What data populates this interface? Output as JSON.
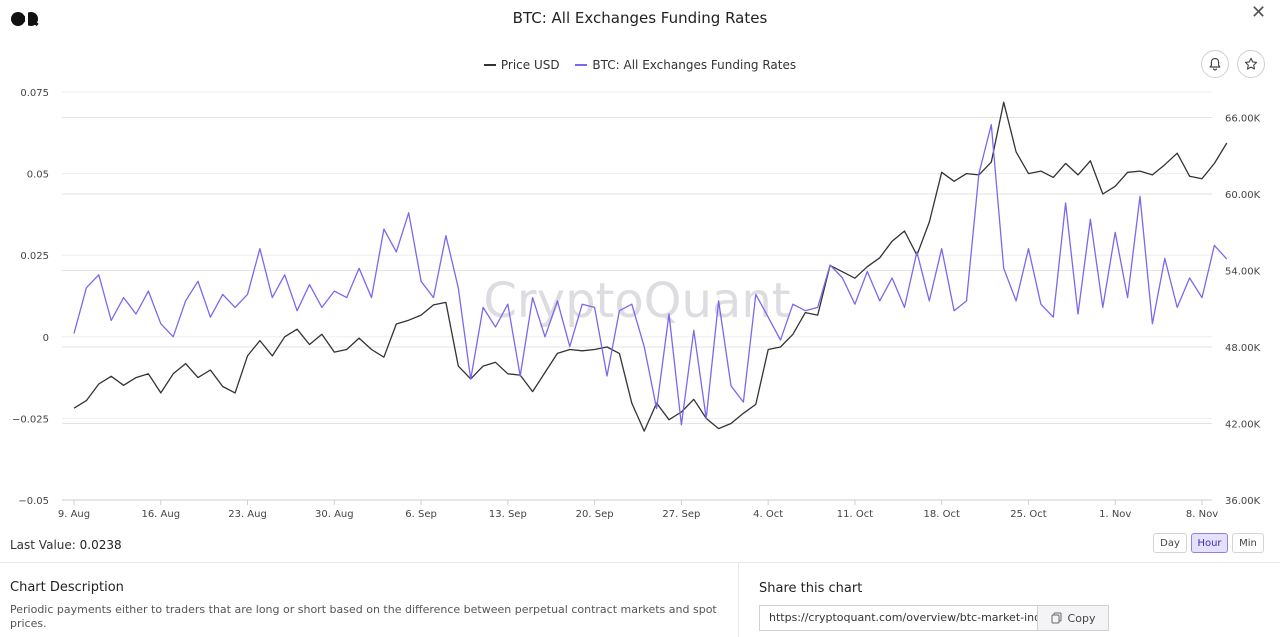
{
  "header": {
    "title": "BTC: All Exchanges Funding Rates",
    "close_icon": "close-icon",
    "logo_icon": "cryptoquant-logo-icon"
  },
  "legend": {
    "items": [
      {
        "label": "Price USD",
        "color": "#333333"
      },
      {
        "label": "BTC: All Exchanges Funding Rates",
        "color": "#7b68ee"
      }
    ]
  },
  "toolbar": {
    "bell_icon": "bell-icon",
    "star_icon": "star-icon"
  },
  "watermark": "CryptoQuant",
  "chart_data": {
    "type": "line",
    "x_tick_labels": [
      "9. Aug",
      "16. Aug",
      "23. Aug",
      "30. Aug",
      "6. Sep",
      "13. Sep",
      "20. Sep",
      "27. Sep",
      "4. Oct",
      "11. Oct",
      "18. Oct",
      "25. Oct",
      "1. Nov",
      "8. Nov"
    ],
    "x_range": [
      "2023-08-09",
      "2023-11-08"
    ],
    "y_left": {
      "ticks": [
        "0.075",
        "0.05",
        "0.025",
        "0",
        "−0.025",
        "−0.05"
      ],
      "range": [
        -0.05,
        0.075
      ]
    },
    "y_right": {
      "ticks": [
        "66.00K",
        "60.00K",
        "54.00K",
        "48.00K",
        "42.00K",
        "36.00K"
      ],
      "range": [
        36000,
        68000
      ]
    },
    "grid": true,
    "legend_position": "top-center",
    "series": [
      {
        "name": "Price USD",
        "axis": "right",
        "color": "#333333",
        "points": [
          [
            "2023-08-09",
            43200
          ],
          [
            "2023-08-10",
            43800
          ],
          [
            "2023-08-11",
            45100
          ],
          [
            "2023-08-12",
            45700
          ],
          [
            "2023-08-13",
            45000
          ],
          [
            "2023-08-14",
            45600
          ],
          [
            "2023-08-15",
            45900
          ],
          [
            "2023-08-16",
            44400
          ],
          [
            "2023-08-17",
            45900
          ],
          [
            "2023-08-18",
            46700
          ],
          [
            "2023-08-19",
            45600
          ],
          [
            "2023-08-20",
            46200
          ],
          [
            "2023-08-21",
            44900
          ],
          [
            "2023-08-22",
            44400
          ],
          [
            "2023-08-23",
            47300
          ],
          [
            "2023-08-24",
            48500
          ],
          [
            "2023-08-25",
            47300
          ],
          [
            "2023-08-26",
            48800
          ],
          [
            "2023-08-27",
            49400
          ],
          [
            "2023-08-28",
            48200
          ],
          [
            "2023-08-29",
            49000
          ],
          [
            "2023-08-30",
            47600
          ],
          [
            "2023-08-31",
            47800
          ],
          [
            "2023-09-01",
            48700
          ],
          [
            "2023-09-02",
            47800
          ],
          [
            "2023-09-03",
            47200
          ],
          [
            "2023-09-04",
            49800
          ],
          [
            "2023-09-05",
            50100
          ],
          [
            "2023-09-06",
            50500
          ],
          [
            "2023-09-07",
            51300
          ],
          [
            "2023-09-08",
            51500
          ],
          [
            "2023-09-09",
            46500
          ],
          [
            "2023-09-10",
            45500
          ],
          [
            "2023-09-11",
            46500
          ],
          [
            "2023-09-12",
            46800
          ],
          [
            "2023-09-13",
            45900
          ],
          [
            "2023-09-14",
            45800
          ],
          [
            "2023-09-15",
            44500
          ],
          [
            "2023-09-16",
            46000
          ],
          [
            "2023-09-17",
            47500
          ],
          [
            "2023-09-18",
            47800
          ],
          [
            "2023-09-19",
            47700
          ],
          [
            "2023-09-20",
            47800
          ],
          [
            "2023-09-21",
            48000
          ],
          [
            "2023-09-22",
            47500
          ],
          [
            "2023-09-23",
            43600
          ],
          [
            "2023-09-24",
            41400
          ],
          [
            "2023-09-25",
            43600
          ],
          [
            "2023-09-26",
            42300
          ],
          [
            "2023-09-27",
            42900
          ],
          [
            "2023-09-28",
            43900
          ],
          [
            "2023-09-29",
            42400
          ],
          [
            "2023-09-30",
            41600
          ],
          [
            "2023-10-01",
            42000
          ],
          [
            "2023-10-02",
            42800
          ],
          [
            "2023-10-03",
            43500
          ],
          [
            "2023-10-04",
            47800
          ],
          [
            "2023-10-05",
            48000
          ],
          [
            "2023-10-06",
            49000
          ],
          [
            "2023-10-07",
            50700
          ],
          [
            "2023-10-08",
            50500
          ],
          [
            "2023-10-09",
            54400
          ],
          [
            "2023-10-10",
            53900
          ],
          [
            "2023-10-11",
            53400
          ],
          [
            "2023-10-12",
            54300
          ],
          [
            "2023-10-13",
            55000
          ],
          [
            "2023-10-14",
            56300
          ],
          [
            "2023-10-15",
            57100
          ],
          [
            "2023-10-16",
            55200
          ],
          [
            "2023-10-17",
            57800
          ],
          [
            "2023-10-18",
            61700
          ],
          [
            "2023-10-19",
            61000
          ],
          [
            "2023-10-20",
            61600
          ],
          [
            "2023-10-21",
            61500
          ],
          [
            "2023-10-22",
            62500
          ],
          [
            "2023-10-23",
            67200
          ],
          [
            "2023-10-24",
            63300
          ],
          [
            "2023-10-25",
            61600
          ],
          [
            "2023-10-26",
            61800
          ],
          [
            "2023-10-27",
            61300
          ],
          [
            "2023-10-28",
            62400
          ],
          [
            "2023-10-29",
            61500
          ],
          [
            "2023-10-30",
            62600
          ],
          [
            "2023-10-31",
            60000
          ],
          [
            "2023-11-01",
            60600
          ],
          [
            "2023-11-02",
            61700
          ],
          [
            "2023-11-03",
            61800
          ],
          [
            "2023-11-04",
            61500
          ],
          [
            "2023-11-05",
            62300
          ],
          [
            "2023-11-06",
            63200
          ],
          [
            "2023-11-07",
            61400
          ],
          [
            "2023-11-08",
            61200
          ],
          [
            "2023-11-09",
            62400
          ],
          [
            "2023-11-10",
            64000
          ]
        ]
      },
      {
        "name": "BTC: All Exchanges Funding Rates",
        "axis": "left",
        "color": "#7b68ee",
        "last_value": "0.0238",
        "points": [
          [
            "2023-08-09",
            0.001
          ],
          [
            "2023-08-10",
            0.015
          ],
          [
            "2023-08-11",
            0.019
          ],
          [
            "2023-08-12",
            0.005
          ],
          [
            "2023-08-13",
            0.012
          ],
          [
            "2023-08-14",
            0.007
          ],
          [
            "2023-08-15",
            0.014
          ],
          [
            "2023-08-16",
            0.004
          ],
          [
            "2023-08-17",
            0.0
          ],
          [
            "2023-08-18",
            0.011
          ],
          [
            "2023-08-19",
            0.017
          ],
          [
            "2023-08-20",
            0.006
          ],
          [
            "2023-08-21",
            0.013
          ],
          [
            "2023-08-22",
            0.009
          ],
          [
            "2023-08-23",
            0.013
          ],
          [
            "2023-08-24",
            0.027
          ],
          [
            "2023-08-25",
            0.012
          ],
          [
            "2023-08-26",
            0.019
          ],
          [
            "2023-08-27",
            0.008
          ],
          [
            "2023-08-28",
            0.016
          ],
          [
            "2023-08-29",
            0.009
          ],
          [
            "2023-08-30",
            0.014
          ],
          [
            "2023-08-31",
            0.012
          ],
          [
            "2023-09-01",
            0.021
          ],
          [
            "2023-09-02",
            0.012
          ],
          [
            "2023-09-03",
            0.033
          ],
          [
            "2023-09-04",
            0.026
          ],
          [
            "2023-09-05",
            0.038
          ],
          [
            "2023-09-06",
            0.017
          ],
          [
            "2023-09-07",
            0.012
          ],
          [
            "2023-09-08",
            0.031
          ],
          [
            "2023-09-09",
            0.015
          ],
          [
            "2023-09-10",
            -0.013
          ],
          [
            "2023-09-11",
            0.009
          ],
          [
            "2023-09-12",
            0.003
          ],
          [
            "2023-09-13",
            0.01
          ],
          [
            "2023-09-14",
            -0.012
          ],
          [
            "2023-09-15",
            0.012
          ],
          [
            "2023-09-16",
            0.0
          ],
          [
            "2023-09-17",
            0.011
          ],
          [
            "2023-09-18",
            -0.003
          ],
          [
            "2023-09-19",
            0.01
          ],
          [
            "2023-09-20",
            0.009
          ],
          [
            "2023-09-21",
            -0.012
          ],
          [
            "2023-09-22",
            0.008
          ],
          [
            "2023-09-23",
            0.01
          ],
          [
            "2023-09-24",
            -0.003
          ],
          [
            "2023-09-25",
            -0.022
          ],
          [
            "2023-09-26",
            0.007
          ],
          [
            "2023-09-27",
            -0.027
          ],
          [
            "2023-09-28",
            0.002
          ],
          [
            "2023-09-29",
            -0.025
          ],
          [
            "2023-09-30",
            0.011
          ],
          [
            "2023-10-01",
            -0.015
          ],
          [
            "2023-10-02",
            -0.02
          ],
          [
            "2023-10-03",
            0.013
          ],
          [
            "2023-10-04",
            0.006
          ],
          [
            "2023-10-05",
            -0.001
          ],
          [
            "2023-10-06",
            0.01
          ],
          [
            "2023-10-07",
            0.008
          ],
          [
            "2023-10-08",
            0.009
          ],
          [
            "2023-10-09",
            0.022
          ],
          [
            "2023-10-10",
            0.018
          ],
          [
            "2023-10-11",
            0.01
          ],
          [
            "2023-10-12",
            0.02
          ],
          [
            "2023-10-13",
            0.011
          ],
          [
            "2023-10-14",
            0.018
          ],
          [
            "2023-10-15",
            0.009
          ],
          [
            "2023-10-16",
            0.026
          ],
          [
            "2023-10-17",
            0.011
          ],
          [
            "2023-10-18",
            0.027
          ],
          [
            "2023-10-19",
            0.008
          ],
          [
            "2023-10-20",
            0.011
          ],
          [
            "2023-10-21",
            0.05
          ],
          [
            "2023-10-22",
            0.065
          ],
          [
            "2023-10-23",
            0.021
          ],
          [
            "2023-10-24",
            0.011
          ],
          [
            "2023-10-25",
            0.027
          ],
          [
            "2023-10-26",
            0.01
          ],
          [
            "2023-10-27",
            0.006
          ],
          [
            "2023-10-28",
            0.041
          ],
          [
            "2023-10-29",
            0.007
          ],
          [
            "2023-10-30",
            0.036
          ],
          [
            "2023-10-31",
            0.009
          ],
          [
            "2023-11-01",
            0.032
          ],
          [
            "2023-11-02",
            0.012
          ],
          [
            "2023-11-03",
            0.043
          ],
          [
            "2023-11-04",
            0.004
          ],
          [
            "2023-11-05",
            0.024
          ],
          [
            "2023-11-06",
            0.009
          ],
          [
            "2023-11-07",
            0.018
          ],
          [
            "2023-11-08",
            0.012
          ],
          [
            "2023-11-09",
            0.028
          ],
          [
            "2023-11-10",
            0.0238
          ]
        ]
      }
    ]
  },
  "footer": {
    "last_value_label": "Last Value:",
    "last_value": "0.0238",
    "ranges": [
      {
        "label": "Day",
        "active": false
      },
      {
        "label": "Hour",
        "active": true
      },
      {
        "label": "Min",
        "active": false
      }
    ]
  },
  "description": {
    "title": "Chart Description",
    "text": "Periodic payments either to traders that are long or short based on the difference between perpetual contract markets and spot prices."
  },
  "share": {
    "title": "Share this chart",
    "url": "https://cryptoquant.com/overview/btc-market-indicators?c=funding-rates",
    "copy_label": "Copy",
    "copy_icon": "copy-icon"
  }
}
